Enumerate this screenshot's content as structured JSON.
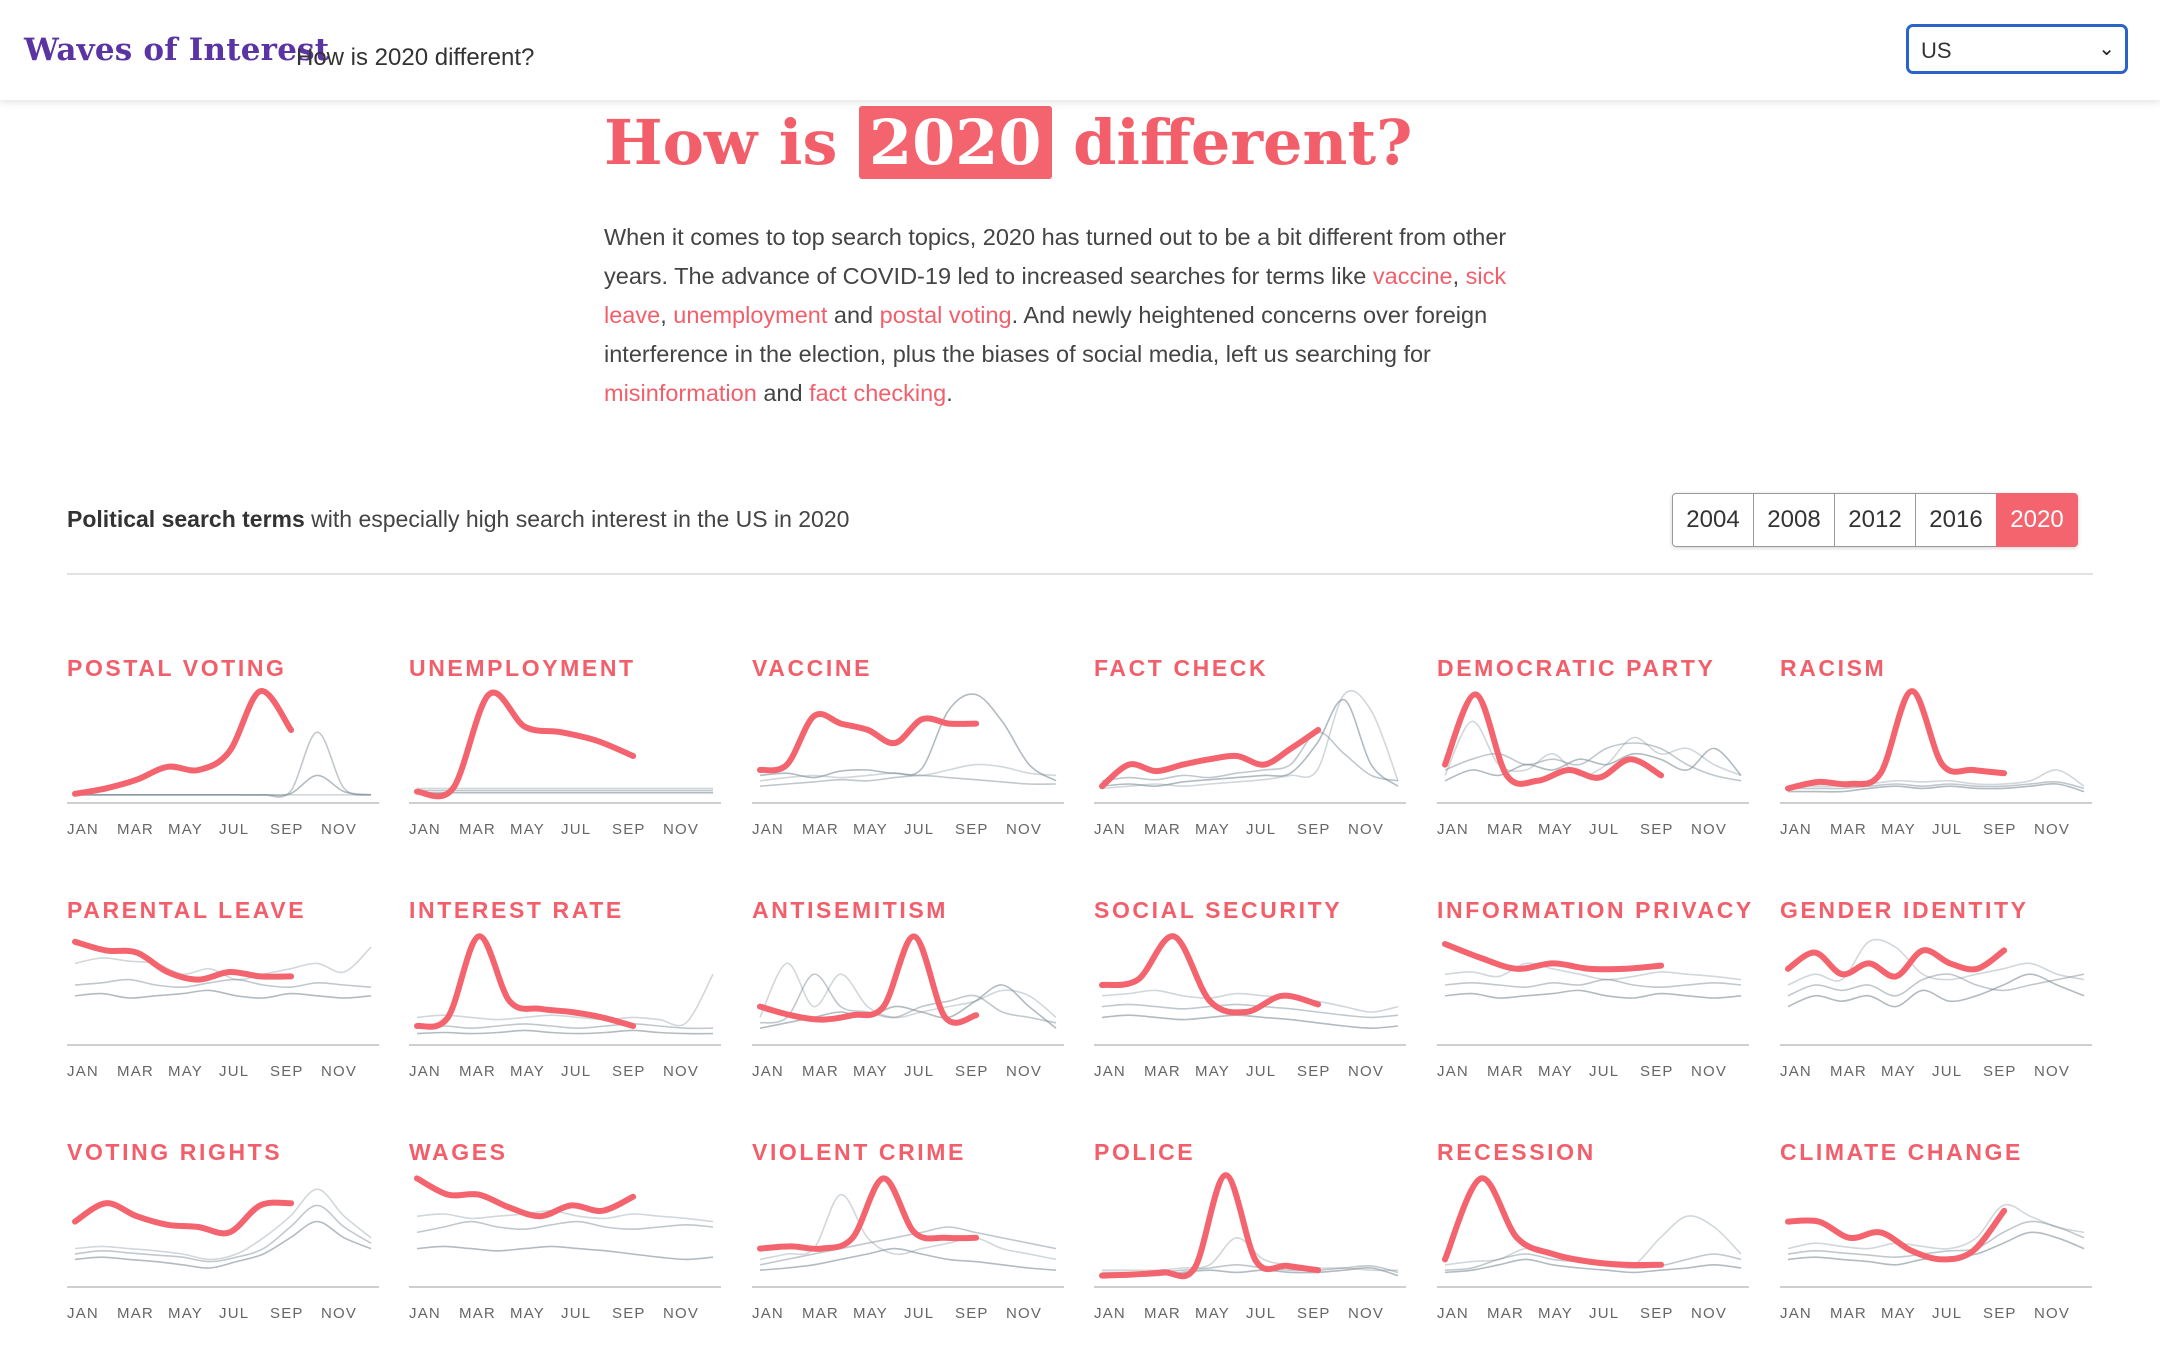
{
  "header": {
    "brand": "Waves of Interest",
    "subtitle": "How is 2020 different?",
    "country_select": {
      "value": "US",
      "chevron_icon": "chevron-down-icon"
    }
  },
  "hero": {
    "title_before": "How is ",
    "title_highlight": "2020",
    "title_after": " different?",
    "intro": [
      {
        "t": "When it comes to top search topics, 2020 has turned out to be a bit different from other years. The advance of COVID-19 led to increased searches for terms like "
      },
      {
        "t": "vaccine",
        "link": true
      },
      {
        "t": ", "
      },
      {
        "t": "sick leave",
        "link": true
      },
      {
        "t": ", "
      },
      {
        "t": "unemployment",
        "link": true
      },
      {
        "t": " and "
      },
      {
        "t": "postal voting",
        "link": true
      },
      {
        "t": ". And newly heightened concerns over foreign interference in the election, plus the biases of social media, left us searching for "
      },
      {
        "t": "misinformation",
        "link": true
      },
      {
        "t": " and "
      },
      {
        "t": "fact checking",
        "link": true
      },
      {
        "t": "."
      }
    ]
  },
  "section": {
    "label_bold": "Political search terms",
    "label_rest": " with especially high search interest in the US in 2020",
    "years": [
      "2004",
      "2008",
      "2012",
      "2016",
      "2020"
    ],
    "active_year": "2020"
  },
  "chart_data": {
    "type": "line",
    "months": [
      "JAN",
      "MAR",
      "MAY",
      "JUL",
      "SEP",
      "NOV"
    ],
    "y_range": [
      0,
      100
    ],
    "highlight_color": "#f4646e",
    "background_color": "#7c8b95",
    "panels": [
      {
        "term": "POSTAL VOTING",
        "values2020": [
          3,
          8,
          16,
          28,
          25,
          42,
          98,
          62
        ],
        "bg": [
          [
            2,
            2,
            2,
            2,
            2,
            2,
            2,
            2,
            2,
            2,
            2,
            2
          ],
          [
            2,
            2,
            2,
            2,
            2,
            2,
            2,
            2,
            5,
            60,
            8,
            2
          ],
          [
            2,
            2,
            2,
            2,
            2,
            2,
            2,
            2,
            3,
            20,
            5,
            2
          ]
        ]
      },
      {
        "term": "UNEMPLOYMENT",
        "values2020": [
          5,
          8,
          95,
          65,
          60,
          52,
          38
        ],
        "bg": [
          [
            8,
            8,
            8,
            8,
            8,
            8,
            8,
            8,
            8,
            8,
            8,
            8
          ],
          [
            6,
            6,
            6,
            6,
            6,
            6,
            6,
            6,
            6,
            6,
            6,
            6
          ],
          [
            4,
            4,
            4,
            4,
            4,
            4,
            4,
            4,
            4,
            4,
            4,
            4
          ]
        ]
      },
      {
        "term": "VACCINE",
        "values2020": [
          25,
          30,
          75,
          68,
          62,
          50,
          72,
          68,
          68
        ],
        "bg": [
          [
            15,
            18,
            20,
            18,
            20,
            22,
            20,
            25,
            30,
            28,
            22,
            20
          ],
          [
            10,
            12,
            14,
            16,
            15,
            18,
            20,
            18,
            16,
            14,
            12,
            12
          ],
          [
            20,
            22,
            18,
            24,
            25,
            22,
            26,
            80,
            95,
            70,
            30,
            15
          ]
        ]
      },
      {
        "term": "FACT CHECK",
        "values2020": [
          10,
          30,
          24,
          30,
          35,
          38,
          30,
          45,
          62
        ],
        "bg": [
          [
            8,
            10,
            12,
            10,
            12,
            14,
            16,
            20,
            25,
            95,
            80,
            15
          ],
          [
            15,
            18,
            16,
            20,
            18,
            22,
            25,
            30,
            60,
            40,
            20,
            15
          ],
          [
            10,
            12,
            10,
            14,
            16,
            18,
            20,
            22,
            50,
            90,
            30,
            10
          ]
        ]
      },
      {
        "term": "DEMOCRATIC PARTY",
        "values2020": [
          30,
          95,
          20,
          15,
          25,
          18,
          35,
          20
        ],
        "bg": [
          [
            20,
            70,
            30,
            25,
            40,
            20,
            30,
            55,
            40,
            45,
            30,
            20
          ],
          [
            25,
            35,
            40,
            30,
            35,
            30,
            45,
            50,
            45,
            30,
            20,
            15
          ],
          [
            15,
            25,
            20,
            30,
            25,
            35,
            30,
            40,
            35,
            25,
            45,
            20
          ]
        ]
      },
      {
        "term": "RACISM",
        "values2020": [
          8,
          14,
          12,
          22,
          98,
          30,
          25,
          22
        ],
        "bg": [
          [
            10,
            10,
            10,
            12,
            15,
            14,
            15,
            12,
            12,
            15,
            25,
            10
          ],
          [
            8,
            8,
            8,
            10,
            12,
            10,
            12,
            10,
            10,
            12,
            14,
            8
          ],
          [
            5,
            5,
            5,
            8,
            10,
            8,
            10,
            8,
            8,
            10,
            12,
            5
          ]
        ]
      },
      {
        "term": "PARENTAL LEAVE",
        "values2020": [
          90,
          82,
          80,
          62,
          55,
          62,
          58,
          58
        ],
        "bg": [
          [
            70,
            75,
            72,
            70,
            60,
            65,
            55,
            60,
            65,
            70,
            62,
            85
          ],
          [
            50,
            52,
            55,
            50,
            48,
            52,
            55,
            50,
            48,
            52,
            50,
            48
          ],
          [
            40,
            42,
            38,
            40,
            42,
            45,
            40,
            38,
            42,
            40,
            38,
            40
          ]
        ]
      },
      {
        "term": "INTEREST RATE",
        "values2020": [
          12,
          20,
          95,
          35,
          28,
          25,
          20,
          12
        ],
        "bg": [
          [
            20,
            22,
            20,
            18,
            20,
            22,
            20,
            18,
            20,
            18,
            15,
            60
          ],
          [
            10,
            12,
            10,
            12,
            14,
            12,
            10,
            12,
            14,
            12,
            10,
            10
          ],
          [
            5,
            6,
            5,
            6,
            8,
            6,
            5,
            6,
            8,
            6,
            5,
            5
          ]
        ]
      },
      {
        "term": "ANTISEMITISM",
        "values2020": [
          30,
          22,
          18,
          22,
          30,
          95,
          20,
          22
        ],
        "bg": [
          [
            20,
            70,
            30,
            60,
            30,
            20,
            25,
            30,
            35,
            45,
            40,
            20
          ],
          [
            15,
            20,
            60,
            30,
            25,
            20,
            30,
            35,
            40,
            25,
            20,
            15
          ],
          [
            10,
            15,
            20,
            25,
            20,
            30,
            25,
            20,
            35,
            50,
            30,
            10
          ]
        ]
      },
      {
        "term": "SOCIAL SECURITY",
        "values2020": [
          50,
          55,
          95,
          35,
          25,
          40,
          32
        ],
        "bg": [
          [
            40,
            42,
            45,
            40,
            38,
            42,
            40,
            38,
            35,
            30,
            25,
            30
          ],
          [
            30,
            32,
            30,
            28,
            30,
            32,
            30,
            28,
            25,
            22,
            20,
            22
          ],
          [
            20,
            22,
            20,
            18,
            20,
            22,
            20,
            18,
            15,
            12,
            10,
            12
          ]
        ]
      },
      {
        "term": "INFORMATION PRIVACY",
        "values2020": [
          88,
          75,
          65,
          70,
          65,
          65,
          68
        ],
        "bg": [
          [
            60,
            62,
            58,
            70,
            65,
            60,
            55,
            58,
            62,
            60,
            58,
            55
          ],
          [
            50,
            52,
            50,
            48,
            52,
            50,
            55,
            50,
            48,
            50,
            52,
            50
          ],
          [
            40,
            42,
            38,
            40,
            42,
            45,
            40,
            38,
            42,
            40,
            38,
            40
          ]
        ]
      },
      {
        "term": "GENDER IDENTITY",
        "values2020": [
          65,
          80,
          60,
          70,
          58,
          82,
          70,
          65,
          82
        ],
        "bg": [
          [
            50,
            60,
            55,
            90,
            85,
            60,
            55,
            60,
            65,
            70,
            60,
            55
          ],
          [
            40,
            50,
            45,
            50,
            40,
            55,
            60,
            50,
            45,
            50,
            55,
            60
          ],
          [
            30,
            40,
            35,
            40,
            30,
            45,
            35,
            40,
            50,
            60,
            50,
            40
          ]
        ]
      },
      {
        "term": "VOTING RIGHTS",
        "values2020": [
          55,
          72,
          60,
          52,
          50,
          45,
          70,
          72
        ],
        "bg": [
          [
            30,
            32,
            30,
            28,
            25,
            20,
            25,
            40,
            60,
            85,
            60,
            40
          ],
          [
            25,
            28,
            26,
            24,
            22,
            18,
            22,
            30,
            50,
            70,
            50,
            35
          ],
          [
            20,
            22,
            20,
            18,
            15,
            12,
            18,
            25,
            40,
            55,
            40,
            30
          ]
        ]
      },
      {
        "term": "WAGES",
        "values2020": [
          95,
          80,
          80,
          68,
          60,
          70,
          65,
          78
        ],
        "bg": [
          [
            60,
            62,
            58,
            60,
            62,
            65,
            60,
            58,
            62,
            60,
            58,
            55
          ],
          [
            45,
            50,
            55,
            50,
            48,
            52,
            55,
            50,
            48,
            50,
            52,
            50
          ],
          [
            30,
            32,
            30,
            28,
            30,
            32,
            30,
            28,
            25,
            22,
            20,
            22
          ]
        ]
      },
      {
        "term": "VIOLENT CRIME",
        "values2020": [
          30,
          32,
          30,
          40,
          95,
          45,
          40,
          40
        ],
        "bg": [
          [
            20,
            25,
            30,
            80,
            40,
            25,
            30,
            35,
            40,
            30,
            25,
            20
          ],
          [
            15,
            20,
            25,
            30,
            35,
            40,
            45,
            50,
            45,
            40,
            35,
            30
          ],
          [
            10,
            12,
            15,
            20,
            25,
            30,
            25,
            20,
            18,
            15,
            12,
            10
          ]
        ]
      },
      {
        "term": "POLICE",
        "values2020": [
          5,
          6,
          8,
          12,
          98,
          18,
          14,
          10
        ],
        "bg": [
          [
            10,
            10,
            10,
            12,
            15,
            40,
            20,
            15,
            12,
            12,
            10,
            10
          ],
          [
            8,
            8,
            8,
            10,
            12,
            15,
            12,
            10,
            10,
            12,
            14,
            8
          ],
          [
            5,
            5,
            5,
            8,
            10,
            8,
            10,
            8,
            8,
            10,
            12,
            5
          ]
        ]
      },
      {
        "term": "RECESSION",
        "values2020": [
          20,
          95,
          40,
          25,
          18,
          15,
          15
        ],
        "bg": [
          [
            15,
            18,
            20,
            30,
            25,
            20,
            18,
            15,
            40,
            60,
            50,
            25
          ],
          [
            10,
            12,
            20,
            25,
            20,
            18,
            15,
            12,
            14,
            20,
            25,
            20
          ],
          [
            8,
            10,
            15,
            20,
            15,
            12,
            10,
            8,
            10,
            12,
            15,
            12
          ]
        ]
      },
      {
        "term": "CLIMATE CHANGE",
        "values2020": [
          55,
          55,
          40,
          45,
          28,
          20,
          28,
          65
        ],
        "bg": [
          [
            30,
            35,
            32,
            30,
            35,
            32,
            30,
            40,
            70,
            60,
            50,
            45
          ],
          [
            25,
            28,
            26,
            24,
            22,
            25,
            28,
            30,
            45,
            55,
            50,
            40
          ],
          [
            20,
            22,
            20,
            18,
            15,
            20,
            22,
            25,
            35,
            45,
            40,
            30
          ]
        ]
      }
    ]
  }
}
